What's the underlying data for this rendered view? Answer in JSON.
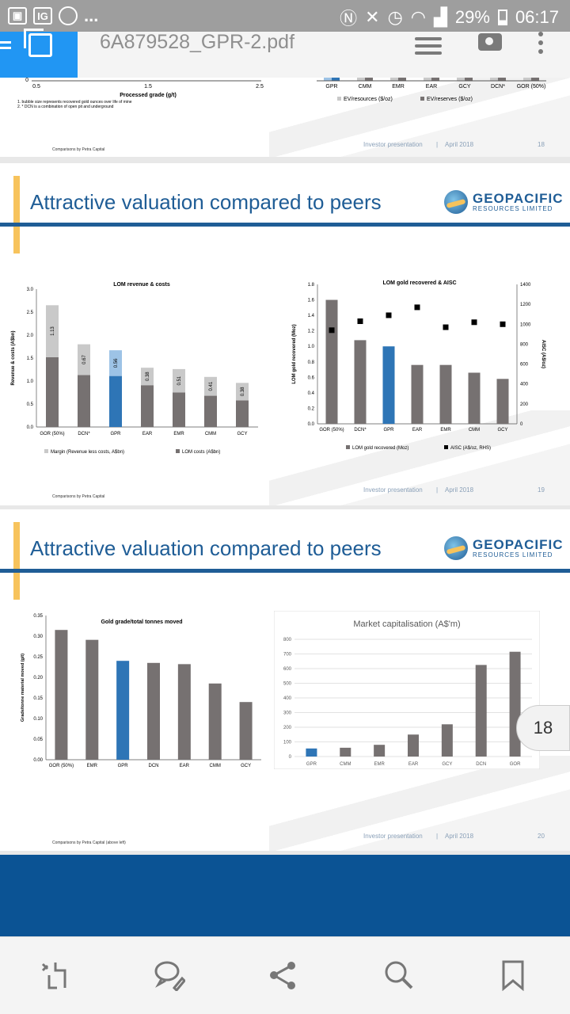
{
  "status_bar": {
    "battery": "29%",
    "time": "06:17",
    "notif_dots": "...",
    "ig": "IG"
  },
  "app_bar": {
    "title": "6A879528_GPR-2.pdf"
  },
  "slide18_partial": {
    "x_ticks": [
      "0.5",
      "1.5",
      "2.5"
    ],
    "y_tick": "0",
    "x_label": "Processed grade (g/t)",
    "notes": [
      "1. bubble size represents recovered gold ounces over life of mine",
      "2. * DCN is a combination of open pit and underground"
    ],
    "bar_cats": [
      "GPR",
      "CMM",
      "EMR",
      "EAR",
      "GCY",
      "DCN*",
      "GOR (50%)"
    ],
    "legend": [
      "EV/resources ($/oz)",
      "EV/reserves ($/oz)"
    ],
    "source": "Comparisons by Petra Capital",
    "footer": "Investor presentation",
    "sep": "|",
    "date": "April 2018",
    "page": "18"
  },
  "slide19": {
    "title": "Attractive valuation compared to peers",
    "logo": {
      "name": "GEOPACIFIC",
      "sub": "RESOURCES LIMITED"
    },
    "source": "Comparisons by Petra Capital",
    "footer": "Investor presentation",
    "sep": "|",
    "date": "April 2018",
    "page": "19"
  },
  "slide20": {
    "title": "Attractive valuation compared to peers",
    "logo": {
      "name": "GEOPACIFIC",
      "sub": "RESOURCES LIMITED"
    },
    "source": "Comparisons by Petra Capital (above left)",
    "footer": "Investor presentation",
    "sep": "|",
    "date": "April 2018",
    "page": "20"
  },
  "page_badge": "18",
  "colors": {
    "bar_gray": "#767171",
    "bar_light": "#c9c9c9",
    "highlight": "#2e75b6",
    "highlight_light": "#9dc3e6",
    "brand_blue": "#1f5d96",
    "accent": "#f7c35c"
  },
  "chart_data": [
    {
      "type": "bar",
      "title": "LOM revenue & costs",
      "categories": [
        "GOR (50%)",
        "DCN*",
        "GPR",
        "EAR",
        "EMR",
        "CMM",
        "GCY"
      ],
      "ylabel": "Revenue & costs (A$bn)",
      "ylim": [
        0,
        3.0
      ],
      "yticks": [
        "0.0",
        "0.5",
        "1.0",
        "1.5",
        "2.0",
        "2.5",
        "3.0"
      ],
      "stacked": true,
      "series": [
        {
          "name": "LOM costs (A$bn)",
          "values": [
            1.52,
            1.13,
            1.11,
            0.91,
            0.75,
            0.68,
            0.58
          ]
        },
        {
          "name": "Margin (Revenue less costs, A$bn)",
          "values": [
            1.13,
            0.67,
            0.56,
            0.38,
            0.51,
            0.41,
            0.38
          ]
        }
      ],
      "data_labels": [
        "1.13",
        "0.67",
        "0.56",
        "0.38",
        "0.51",
        "0.41",
        "0.38"
      ],
      "legend": "bottom"
    },
    {
      "type": "bar",
      "title": "LOM gold recovered & AISC",
      "categories": [
        "GOR (50%)",
        "DCN*",
        "GPR",
        "EAR",
        "EMR",
        "CMM",
        "GCY"
      ],
      "ylabel": "LOM gold recovered (Moz)",
      "y2label": "AISC (A$/oz)",
      "ylim": [
        0,
        1.8
      ],
      "y2lim": [
        0,
        1400
      ],
      "yticks": [
        "0.0",
        "0.2",
        "0.4",
        "0.6",
        "0.8",
        "1.0",
        "1.2",
        "1.4",
        "1.6",
        "1.8"
      ],
      "y2ticks": [
        "0",
        "200",
        "400",
        "600",
        "800",
        "1000",
        "1200",
        "1400"
      ],
      "series": [
        {
          "name": "LOM gold recovered (Moz)",
          "values": [
            1.6,
            1.08,
            1.0,
            0.76,
            0.76,
            0.66,
            0.58
          ]
        },
        {
          "name": "AISC (A$/oz, RHS)",
          "values": [
            940,
            1030,
            1090,
            1170,
            970,
            1020,
            1000
          ]
        }
      ],
      "legend": "bottom"
    },
    {
      "type": "bar",
      "title": "Gold grade/total tonnes moved",
      "categories": [
        "GOR (50%)",
        "EMR",
        "GPR",
        "DCN",
        "EAR",
        "CMM",
        "GCY"
      ],
      "ylabel": "Grade/tonne material moved (g/t)",
      "ylim": [
        0,
        0.35
      ],
      "yticks": [
        "0.00",
        "0.05",
        "0.10",
        "0.15",
        "0.20",
        "0.25",
        "0.30",
        "0.35"
      ],
      "values": [
        0.315,
        0.291,
        0.24,
        0.235,
        0.232,
        0.185,
        0.14
      ]
    },
    {
      "type": "bar",
      "title": "Market capitalisation (A$'m)",
      "categories": [
        "GPR",
        "CMM",
        "EMR",
        "EAR",
        "GCY",
        "DCN",
        "GOR"
      ],
      "ylim": [
        0,
        800
      ],
      "yticks": [
        "0",
        "100",
        "200",
        "300",
        "400",
        "500",
        "600",
        "700",
        "800"
      ],
      "values": [
        55,
        60,
        80,
        150,
        220,
        625,
        715
      ]
    }
  ],
  "bottom_bar": [
    "reflow-icon",
    "comment-icon",
    "share-icon",
    "search-icon",
    "bookmark-icon"
  ]
}
